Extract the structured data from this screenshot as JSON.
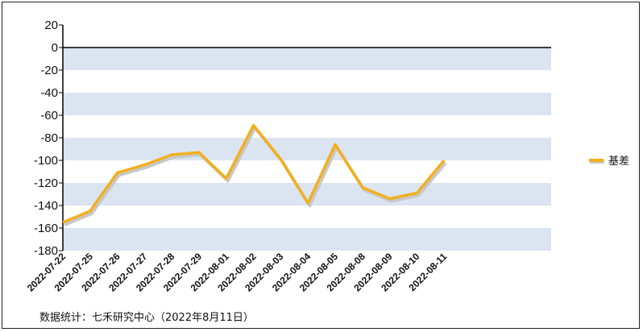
{
  "chart_data": {
    "type": "line",
    "categories": [
      "2022-07-22",
      "2022-07-25",
      "2022-07-26",
      "2022-07-27",
      "2022-07-28",
      "2022-07-29",
      "2022-08-01",
      "2022-08-02",
      "2022-08-03",
      "2022-08-04",
      "2022-08-05",
      "2022-08-08",
      "2022-08-09",
      "2022-08-10",
      "2022-08-11"
    ],
    "series": [
      {
        "name": "基差",
        "values": [
          -155,
          -145,
          -111,
          -104,
          -95,
          -93,
          -116,
          -69,
          -99,
          -138,
          -86,
          -124,
          -134,
          -129,
          -100
        ]
      }
    ],
    "ylim": [
      -180,
      20
    ],
    "yticks": [
      "20",
      "0",
      "-20",
      "-40",
      "-60",
      "-80",
      "-100",
      "-120",
      "-140",
      "-160",
      "-180"
    ],
    "grid": "alternating horizontal bands",
    "legend_position": "right",
    "colors": {
      "line": "#f2b01e",
      "shadow": "#c8c8c8",
      "band": "#dbe5f1",
      "axis": "#000000"
    }
  },
  "footer": {
    "source": "数据统计：七禾研究中心（2022年8月11日）"
  }
}
